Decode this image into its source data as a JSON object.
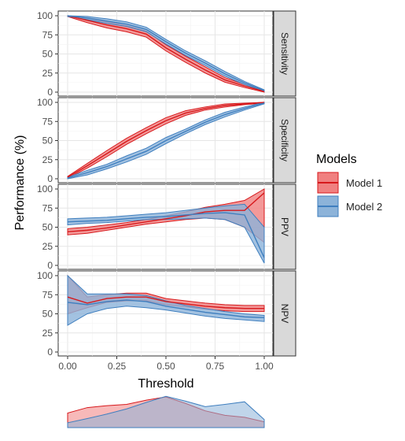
{
  "chart_data": {
    "type": "line",
    "xlabel": "Threshold",
    "ylabel": "Performance (%)",
    "x_ticks": [
      "0.00",
      "0.25",
      "0.50",
      "0.75",
      "1.00"
    ],
    "y_ticks": [
      "0",
      "25",
      "50",
      "75",
      "100"
    ],
    "xlim": [
      0,
      1
    ],
    "ylim": [
      0,
      100
    ],
    "grid": true,
    "legend": {
      "title": "Models",
      "position": "right",
      "entries": [
        {
          "name": "Model 1",
          "line": "#d7191c",
          "fill": "#f08080"
        },
        {
          "name": "Model 2",
          "line": "#3f7fbf",
          "fill": "#8cb3d9"
        }
      ]
    },
    "x": [
      0,
      0.1,
      0.2,
      0.3,
      0.4,
      0.5,
      0.6,
      0.7,
      0.8,
      0.9,
      1.0
    ],
    "panels": [
      {
        "label": "Sensitivity",
        "series": [
          {
            "name": "Model 1",
            "mean": [
              100,
              94,
              88,
              83,
              76,
              58,
              43,
              29,
              16,
              8,
              1
            ],
            "lower": [
              99,
              91,
              84,
              79,
              72,
              54,
              39,
              25,
              13,
              6,
              0
            ],
            "upper": [
              100,
              97,
              92,
              87,
              80,
              62,
              47,
              33,
              19,
              10,
              2
            ]
          },
          {
            "name": "Model 2",
            "mean": [
              100,
              97,
              93,
              89,
              82,
              66,
              51,
              38,
              24,
              12,
              2
            ],
            "lower": [
              99,
              95,
              90,
              86,
              79,
              63,
              48,
              35,
              21,
              10,
              1
            ],
            "upper": [
              100,
              99,
              96,
              92,
              85,
              69,
              54,
              41,
              27,
              14,
              3
            ]
          }
        ]
      },
      {
        "label": "Specificity",
        "series": [
          {
            "name": "Model 1",
            "mean": [
              2,
              17,
              33,
              49,
              63,
              76,
              86,
              92,
              96,
              98,
              100
            ],
            "lower": [
              1,
              14,
              29,
              45,
              59,
              72,
              83,
              90,
              94,
              97,
              99
            ],
            "upper": [
              3,
              20,
              37,
              53,
              67,
              80,
              89,
              94,
              98,
              99,
              100
            ]
          },
          {
            "name": "Model 2",
            "mean": [
              1,
              8,
              16,
              26,
              36,
              50,
              62,
              74,
              84,
              92,
              99
            ],
            "lower": [
              0,
              5,
              13,
              22,
              32,
              46,
              59,
              71,
              81,
              90,
              98
            ],
            "upper": [
              2,
              11,
              19,
              30,
              40,
              54,
              65,
              77,
              87,
              94,
              100
            ]
          }
        ]
      },
      {
        "label": "PPV",
        "series": [
          {
            "name": "Model 1",
            "mean": [
              44,
              46,
              49,
              53,
              57,
              61,
              65,
              70,
              72,
              72,
              95
            ],
            "lower": [
              40,
              42,
              46,
              50,
              54,
              57,
              60,
              62,
              60,
              50,
              30
            ],
            "upper": [
              48,
              50,
              53,
              56,
              60,
              65,
              70,
              76,
              80,
              85,
              100
            ]
          },
          {
            "name": "Model 2",
            "mean": [
              57,
              58,
              59,
              61,
              63,
              64,
              66,
              68,
              69,
              66,
              10
            ],
            "lower": [
              53,
              55,
              56,
              58,
              60,
              60,
              61,
              62,
              60,
              50,
              3
            ],
            "upper": [
              61,
              62,
              63,
              65,
              67,
              69,
              72,
              75,
              78,
              80,
              50
            ]
          }
        ]
      },
      {
        "label": "NPV",
        "series": [
          {
            "name": "Model 1",
            "mean": [
              72,
              64,
              70,
              72,
              72,
              66,
              63,
              60,
              58,
              57,
              57
            ],
            "lower": [
              50,
              58,
              65,
              67,
              67,
              62,
              59,
              56,
              54,
              53,
              53
            ],
            "upper": [
              100,
              72,
              75,
              77,
              77,
              70,
              67,
              64,
              62,
              61,
              61
            ]
          },
          {
            "name": "Model 2",
            "mean": [
              65,
              62,
              66,
              68,
              66,
              60,
              56,
              52,
              49,
              46,
              45
            ],
            "lower": [
              35,
              50,
              57,
              60,
              58,
              55,
              51,
              47,
              44,
              42,
              40
            ],
            "upper": [
              100,
              76,
              76,
              76,
              74,
              67,
              61,
              57,
              53,
              50,
              48
            ]
          }
        ]
      }
    ],
    "density": {
      "x": [
        0,
        0.1,
        0.2,
        0.3,
        0.4,
        0.5,
        0.6,
        0.7,
        0.8,
        0.9,
        1.0
      ],
      "series": [
        {
          "name": "Model 1",
          "values": [
            0.45,
            0.62,
            0.68,
            0.72,
            0.85,
            0.95,
            0.75,
            0.52,
            0.38,
            0.32,
            0.18
          ]
        },
        {
          "name": "Model 2",
          "values": [
            0.15,
            0.28,
            0.42,
            0.58,
            0.78,
            0.97,
            0.82,
            0.65,
            0.72,
            0.8,
            0.25
          ]
        }
      ]
    }
  }
}
